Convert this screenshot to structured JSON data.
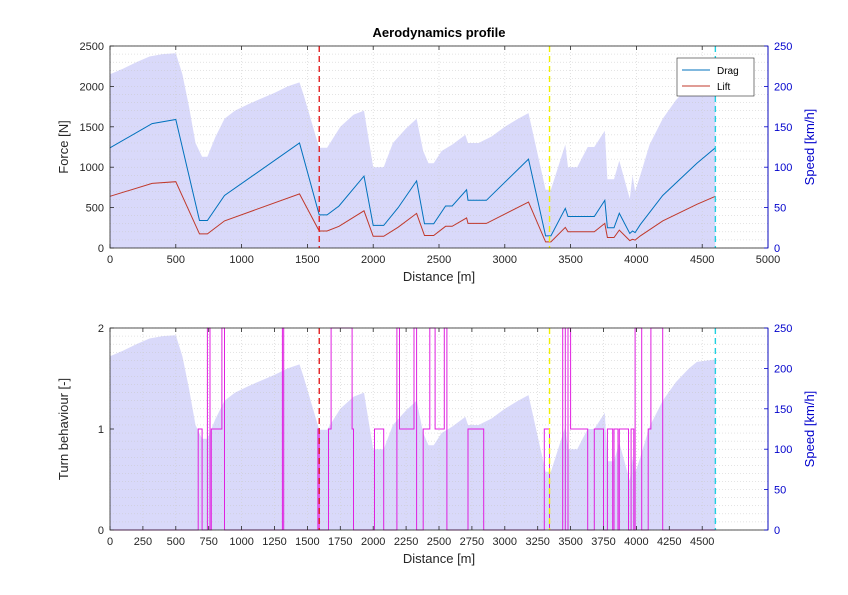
{
  "chart_data": [
    {
      "type": "line",
      "title": "Aerodynamics profile",
      "xlabel": "Distance [m]",
      "ylabel_left": "Force [N]",
      "ylabel_right": "Speed [km/h]",
      "xlim": [
        0,
        5000
      ],
      "ylim_left": [
        0,
        2500
      ],
      "ylim_right": [
        0,
        250
      ],
      "xticks": [
        "0",
        "500",
        "1000",
        "1500",
        "2000",
        "2500",
        "3000",
        "3500",
        "4000",
        "4500",
        "5000"
      ],
      "yticks_left": [
        "0",
        "500",
        "1000",
        "1500",
        "2000",
        "2500"
      ],
      "yticks_right": [
        "0",
        "50",
        "100",
        "150",
        "200",
        "250"
      ],
      "grid": true,
      "legend": "top-right",
      "colors": {
        "drag": "#0072BD",
        "lift": "#C0392B",
        "speed": "#8080F0",
        "axis_right": "#0000CC"
      },
      "series": [
        {
          "name": "Drag",
          "axis": "left",
          "x": [
            0,
            320,
            500,
            680,
            740,
            870,
            1440,
            1590,
            1650,
            1740,
            1930,
            2000,
            2080,
            2190,
            2330,
            2390,
            2460,
            2550,
            2600,
            2710,
            2720,
            2860,
            3180,
            3310,
            3350,
            3460,
            3480,
            3630,
            3680,
            3760,
            3780,
            3830,
            3870,
            3950,
            3970,
            3990,
            4030,
            4200,
            4460,
            4600
          ],
          "y": [
            1240,
            1540,
            1590,
            340,
            340,
            650,
            1300,
            410,
            410,
            520,
            890,
            280,
            280,
            500,
            830,
            300,
            300,
            520,
            520,
            720,
            590,
            590,
            1100,
            150,
            150,
            490,
            390,
            390,
            390,
            590,
            250,
            250,
            430,
            180,
            210,
            190,
            290,
            650,
            1050,
            1240
          ]
        },
        {
          "name": "Lift",
          "axis": "left",
          "x": [
            0,
            320,
            500,
            680,
            740,
            870,
            1440,
            1590,
            1650,
            1740,
            1930,
            2000,
            2080,
            2190,
            2330,
            2390,
            2460,
            2550,
            2600,
            2710,
            2720,
            2860,
            3180,
            3310,
            3350,
            3460,
            3480,
            3630,
            3680,
            3760,
            3780,
            3830,
            3870,
            3950,
            3970,
            3990,
            4030,
            4200,
            4460,
            4600
          ],
          "y": [
            640,
            800,
            820,
            175,
            175,
            335,
            670,
            210,
            210,
            268,
            460,
            145,
            145,
            258,
            428,
            155,
            155,
            268,
            268,
            372,
            305,
            305,
            568,
            75,
            75,
            255,
            200,
            200,
            200,
            305,
            130,
            130,
            222,
            92,
            108,
            98,
            150,
            335,
            541,
            640
          ]
        },
        {
          "name": "Speed",
          "axis": "right",
          "x": [
            0,
            100,
            200,
            300,
            400,
            500,
            550,
            600,
            650,
            700,
            740,
            800,
            870,
            950,
            1050,
            1150,
            1250,
            1350,
            1440,
            1470,
            1590,
            1650,
            1750,
            1850,
            1930,
            2000,
            2050,
            2080,
            2150,
            2250,
            2330,
            2380,
            2420,
            2460,
            2520,
            2600,
            2700,
            2720,
            2800,
            2900,
            3000,
            3100,
            3180,
            3310,
            3330,
            3350,
            3460,
            3480,
            3550,
            3630,
            3680,
            3760,
            3780,
            3830,
            3870,
            3950,
            3970,
            3990,
            4030,
            4100,
            4200,
            4300,
            4400,
            4460,
            4600
          ],
          "y": [
            215,
            222,
            230,
            237,
            240,
            241,
            215,
            175,
            130,
            113,
            113,
            137,
            160,
            170,
            178,
            185,
            192,
            200,
            205,
            190,
            124,
            124,
            150,
            165,
            170,
            100,
            100,
            100,
            130,
            148,
            160,
            120,
            105,
            105,
            120,
            128,
            140,
            130,
            130,
            138,
            150,
            160,
            167,
            72,
            72,
            72,
            128,
            100,
            100,
            125,
            125,
            145,
            85,
            85,
            108,
            61,
            90,
            70,
            90,
            128,
            160,
            183,
            200,
            208,
            211
          ]
        }
      ],
      "markers": [
        {
          "x": 1590,
          "color": "#E32020",
          "style": "dashed"
        },
        {
          "x": 3340,
          "color": "#F0F000",
          "style": "dashed"
        },
        {
          "x": 4600,
          "color": "#20D0E0",
          "style": "dashed"
        }
      ]
    },
    {
      "type": "line",
      "title": "",
      "xlabel": "Distance [m]",
      "ylabel_left": "Turn behaviour [-]",
      "ylabel_right": "Speed [km/h]",
      "xlim": [
        0,
        5000
      ],
      "ylim_left": [
        0,
        2
      ],
      "ylim_right": [
        0,
        250
      ],
      "xticks": [
        "0",
        "250",
        "500",
        "750",
        "1000",
        "1250",
        "1500",
        "1750",
        "2000",
        "2250",
        "2500",
        "2750",
        "3000",
        "3250",
        "3500",
        "3750",
        "4000",
        "4250",
        "4500"
      ],
      "yticks_left": [
        "0",
        "1",
        "2"
      ],
      "yticks_right": [
        "0",
        "50",
        "100",
        "150",
        "200",
        "250"
      ],
      "grid": true,
      "colors": {
        "turn": "#E020E0",
        "speed": "#8080F0",
        "axis_right": "#0000CC"
      },
      "series": [
        {
          "name": "Turn",
          "axis": "left",
          "x": [
            0,
            670,
            670,
            700,
            700,
            740,
            740,
            760,
            760,
            770,
            770,
            850,
            850,
            870,
            870,
            1310,
            1310,
            1320,
            1320,
            1580,
            1580,
            1590,
            1590,
            1660,
            1660,
            1680,
            1680,
            1840,
            1840,
            1850,
            1850,
            2010,
            2010,
            2080,
            2080,
            2180,
            2180,
            2200,
            2200,
            2310,
            2310,
            2330,
            2330,
            2380,
            2380,
            2430,
            2430,
            2470,
            2470,
            2540,
            2540,
            2560,
            2560,
            2720,
            2720,
            2840,
            2840,
            3300,
            3300,
            3340,
            3340,
            3440,
            3440,
            3460,
            3460,
            3480,
            3480,
            3500,
            3500,
            3630,
            3630,
            3680,
            3680,
            3750,
            3750,
            3780,
            3780,
            3820,
            3820,
            3830,
            3830,
            3860,
            3860,
            3870,
            3870,
            3940,
            3940,
            3960,
            3960,
            3980,
            3980,
            3990,
            3990,
            4040,
            4040,
            4090,
            4090,
            4110,
            4110,
            4200,
            4200,
            4220,
            4220,
            4600
          ],
          "y": [
            0,
            0,
            1,
            1,
            0,
            0,
            2,
            2,
            0,
            0,
            1,
            1,
            2,
            2,
            0,
            0,
            2,
            2,
            0,
            0,
            1,
            1,
            0,
            0,
            1,
            1,
            2,
            2,
            1,
            1,
            0,
            0,
            1,
            1,
            0,
            0,
            2,
            2,
            1,
            1,
            2,
            2,
            0,
            0,
            1,
            1,
            2,
            2,
            1,
            1,
            2,
            2,
            0,
            0,
            1,
            1,
            0,
            0,
            1,
            1,
            0,
            0,
            2,
            2,
            0,
            0,
            2,
            2,
            1,
            1,
            0,
            0,
            1,
            1,
            0,
            0,
            1,
            1,
            0,
            0,
            1,
            1,
            0,
            0,
            1,
            1,
            0,
            0,
            1,
            1,
            0,
            0,
            2,
            2,
            0,
            0,
            1,
            1,
            2,
            2,
            0,
            0,
            0,
            0
          ]
        },
        {
          "name": "Speed",
          "axis": "right",
          "x": [
            0,
            100,
            200,
            300,
            400,
            500,
            550,
            600,
            650,
            700,
            740,
            800,
            870,
            950,
            1050,
            1150,
            1250,
            1350,
            1440,
            1470,
            1590,
            1650,
            1750,
            1850,
            1930,
            2000,
            2050,
            2080,
            2150,
            2250,
            2330,
            2380,
            2420,
            2460,
            2520,
            2600,
            2700,
            2720,
            2800,
            2900,
            3000,
            3100,
            3180,
            3310,
            3330,
            3350,
            3460,
            3480,
            3550,
            3630,
            3680,
            3760,
            3780,
            3830,
            3870,
            3950,
            3970,
            3990,
            4030,
            4100,
            4200,
            4300,
            4400,
            4460,
            4600
          ],
          "y": [
            215,
            222,
            230,
            237,
            240,
            241,
            215,
            175,
            130,
            113,
            113,
            137,
            160,
            170,
            178,
            185,
            192,
            200,
            205,
            190,
            124,
            124,
            150,
            165,
            170,
            100,
            100,
            100,
            130,
            148,
            160,
            120,
            105,
            105,
            120,
            128,
            140,
            130,
            130,
            138,
            150,
            160,
            167,
            72,
            72,
            72,
            128,
            100,
            100,
            125,
            125,
            145,
            85,
            85,
            108,
            61,
            90,
            70,
            90,
            128,
            160,
            183,
            200,
            208,
            211
          ]
        }
      ],
      "markers": [
        {
          "x": 1590,
          "color": "#E32020",
          "style": "dashed"
        },
        {
          "x": 3340,
          "color": "#F0F000",
          "style": "dashed"
        },
        {
          "x": 4600,
          "color": "#20D0E0",
          "style": "dashed"
        }
      ]
    }
  ]
}
